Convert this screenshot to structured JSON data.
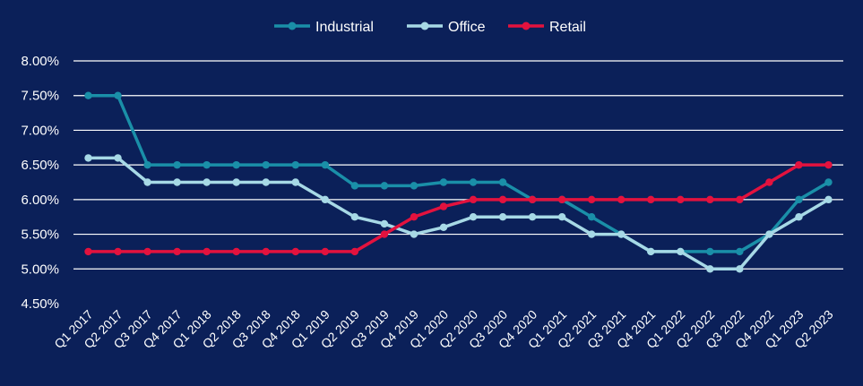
{
  "chart_data": {
    "type": "line",
    "title": "",
    "xlabel": "",
    "ylabel": "",
    "ylim": [
      0.045,
      0.08
    ],
    "y_ticks": [
      "4.50%",
      "5.00%",
      "5.50%",
      "6.00%",
      "6.50%",
      "7.00%",
      "7.50%",
      "8.00%"
    ],
    "grid": "horizontal",
    "legend_position": "top-center",
    "categories": [
      "Q1 2017",
      "Q2 2017",
      "Q3 2017",
      "Q4 2017",
      "Q1 2018",
      "Q2 2018",
      "Q3 2018",
      "Q4 2018",
      "Q1 2019",
      "Q2 2019",
      "Q3 2019",
      "Q4 2019",
      "Q1 2020",
      "Q2 2020",
      "Q3 2020",
      "Q4 2020",
      "Q1 2021",
      "Q2 2021",
      "Q3 2021",
      "Q4 2021",
      "Q1 2022",
      "Q2 2022",
      "Q3 2022",
      "Q4 2022",
      "Q1 2023",
      "Q2 2023"
    ],
    "series": [
      {
        "name": "Industrial",
        "color": "#1a8fa8",
        "values": [
          0.075,
          0.075,
          0.065,
          0.065,
          0.065,
          0.065,
          0.065,
          0.065,
          0.065,
          0.062,
          0.062,
          0.062,
          0.0625,
          0.0625,
          0.0625,
          0.06,
          0.06,
          0.0575,
          0.055,
          0.0525,
          0.0525,
          0.0525,
          0.0525,
          0.055,
          0.06,
          0.0625
        ]
      },
      {
        "name": "Office",
        "color": "#a7d9e6",
        "values": [
          0.066,
          0.066,
          0.0625,
          0.0625,
          0.0625,
          0.0625,
          0.0625,
          0.0625,
          0.06,
          0.0575,
          0.0565,
          0.055,
          0.056,
          0.0575,
          0.0575,
          0.0575,
          0.0575,
          0.055,
          0.055,
          0.0525,
          0.0525,
          0.05,
          0.05,
          0.055,
          0.0575,
          0.06
        ]
      },
      {
        "name": "Retail",
        "color": "#e3123e",
        "values": [
          0.0525,
          0.0525,
          0.0525,
          0.0525,
          0.0525,
          0.0525,
          0.0525,
          0.0525,
          0.0525,
          0.0525,
          0.055,
          0.0575,
          0.059,
          0.06,
          0.06,
          0.06,
          0.06,
          0.06,
          0.06,
          0.06,
          0.06,
          0.06,
          0.06,
          0.0625,
          0.065,
          0.065
        ]
      }
    ]
  }
}
